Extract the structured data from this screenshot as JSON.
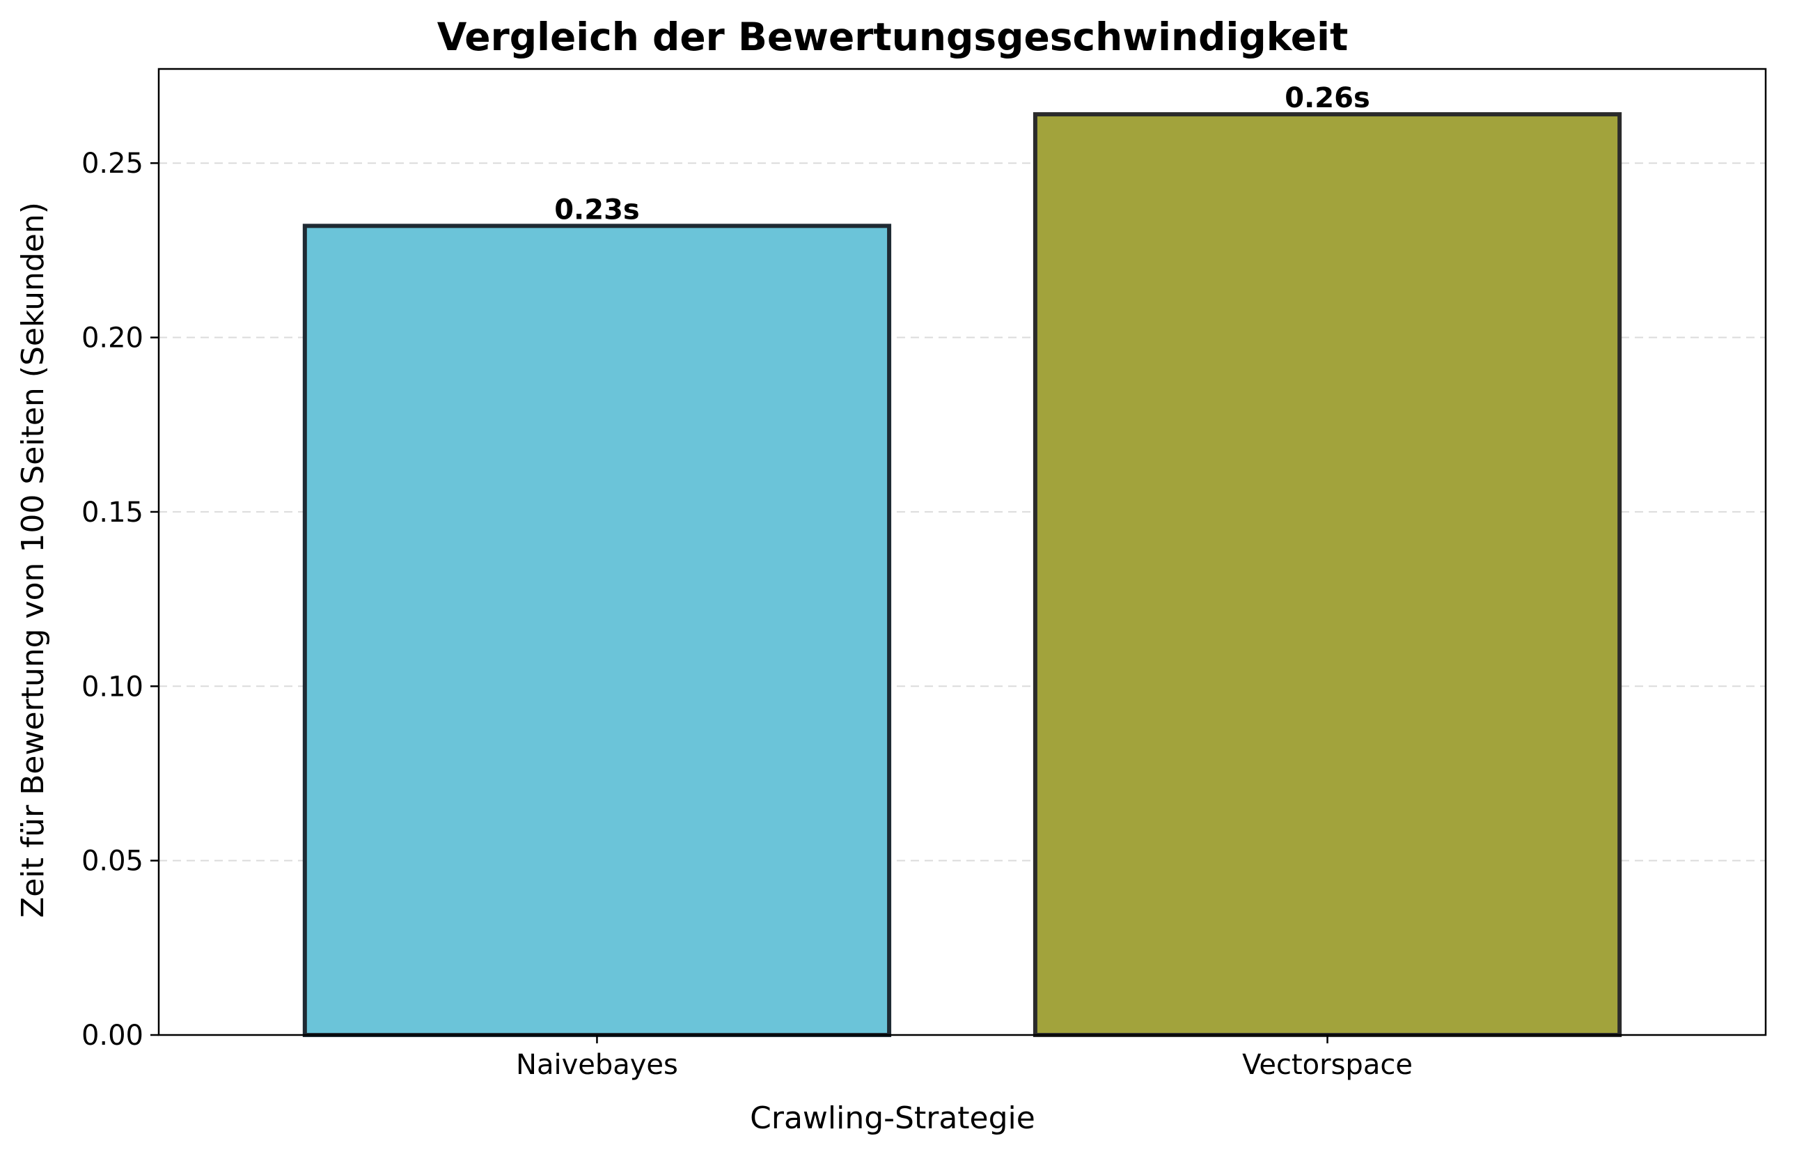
{
  "chart_data": {
    "type": "bar",
    "title": "Vergleich der Bewertungsgeschwindigkeit",
    "xlabel": "Crawling-Strategie",
    "ylabel": "Zeit für Bewertung von 100 Seiten (Sekunden)",
    "categories": [
      "Naivebayes",
      "Vectorspace"
    ],
    "values": [
      0.232,
      0.264
    ],
    "value_labels": [
      "0.23s",
      "0.26s"
    ],
    "bar_colors": [
      "#6bc4d9",
      "#a2a33c"
    ],
    "bar_edge_colors": [
      "#1f2a33",
      "#2b2b2b"
    ],
    "ylim": [
      0,
      0.277
    ],
    "yticks": [
      0.0,
      0.05,
      0.1,
      0.15,
      0.2,
      0.25
    ],
    "ytick_labels": [
      "0.00",
      "0.05",
      "0.10",
      "0.15",
      "0.20",
      "0.25"
    ],
    "grid": {
      "axis": "y",
      "style": "dashed"
    },
    "legend": null
  }
}
